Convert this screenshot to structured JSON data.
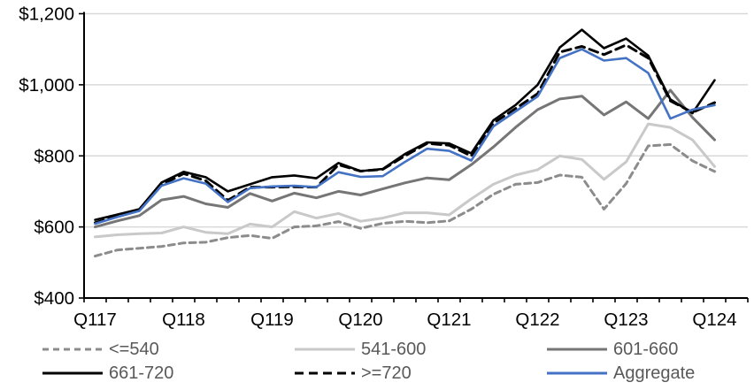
{
  "chart_data": {
    "type": "line",
    "title": "",
    "xlabel": "",
    "ylabel": "",
    "ylim": [
      400,
      1200
    ],
    "grid": "horizontal",
    "legend_position": "bottom",
    "y_tick_labels": [
      "$400",
      "$600",
      "$800",
      "$1,000",
      "$1,200"
    ],
    "y_tick_values": [
      400,
      600,
      800,
      1000,
      1200
    ],
    "x_axis_labels": [
      "Q117",
      "Q118",
      "Q119",
      "Q120",
      "Q121",
      "Q122",
      "Q123",
      "Q124"
    ],
    "x": [
      "Q117",
      "Q217",
      "Q317",
      "Q417",
      "Q118",
      "Q218",
      "Q318",
      "Q418",
      "Q119",
      "Q219",
      "Q319",
      "Q419",
      "Q120",
      "Q220",
      "Q320",
      "Q420",
      "Q121",
      "Q221",
      "Q321",
      "Q421",
      "Q122",
      "Q222",
      "Q322",
      "Q422",
      "Q123",
      "Q223",
      "Q323",
      "Q423",
      "Q124"
    ],
    "series": [
      {
        "name": "<=540",
        "color": "#8C8C8C",
        "style": "dashed",
        "dash": "7 5",
        "width": 3,
        "values": [
          518,
          535,
          540,
          545,
          555,
          557,
          570,
          576,
          568,
          600,
          603,
          615,
          596,
          610,
          616,
          612,
          617,
          650,
          692,
          720,
          725,
          746,
          740,
          650,
          722,
          828,
          832,
          786,
          756
        ]
      },
      {
        "name": "541-600",
        "color": "#C9C9C9",
        "style": "solid",
        "dash": "",
        "width": 3,
        "values": [
          572,
          578,
          581,
          583,
          600,
          585,
          581,
          608,
          600,
          643,
          625,
          638,
          616,
          625,
          640,
          640,
          634,
          679,
          720,
          746,
          761,
          800,
          790,
          734,
          783,
          890,
          880,
          845,
          770
        ]
      },
      {
        "name": "601-660",
        "color": "#767676",
        "style": "solid",
        "dash": "",
        "width": 3,
        "values": [
          600,
          617,
          632,
          676,
          686,
          665,
          655,
          694,
          673,
          695,
          682,
          700,
          690,
          707,
          724,
          738,
          733,
          775,
          825,
          880,
          930,
          960,
          968,
          915,
          952,
          905,
          985,
          908,
          845
        ]
      },
      {
        "name": "661-720",
        "color": "#000000",
        "style": "solid",
        "dash": "",
        "width": 2.6,
        "values": [
          620,
          635,
          650,
          725,
          755,
          740,
          700,
          720,
          740,
          745,
          737,
          780,
          757,
          763,
          805,
          838,
          835,
          807,
          900,
          943,
          1000,
          1105,
          1155,
          1103,
          1130,
          1082,
          959,
          920,
          1013
        ]
      },
      {
        "name": ">=720",
        "color": "#000000",
        "style": "dashed",
        "dash": "10 6",
        "width": 3,
        "values": [
          612,
          630,
          648,
          718,
          750,
          730,
          675,
          712,
          712,
          713,
          712,
          775,
          757,
          762,
          800,
          835,
          830,
          800,
          892,
          933,
          975,
          1092,
          1108,
          1085,
          1112,
          1075,
          955,
          922,
          950
        ]
      },
      {
        "name": "Aggregate",
        "color": "#4472C4",
        "style": "solid",
        "dash": "",
        "width": 2.6,
        "values": [
          609,
          628,
          645,
          716,
          737,
          722,
          670,
          709,
          714,
          716,
          712,
          754,
          741,
          743,
          783,
          820,
          814,
          787,
          883,
          925,
          967,
          1075,
          1100,
          1068,
          1075,
          1033,
          905,
          930,
          943
        ]
      }
    ],
    "colors": {
      "axis": "#000000",
      "gridline": "#D9D9D9",
      "tick_label": "#000000",
      "legend_text": "#595959",
      "accent_blue": "#4472C4"
    }
  }
}
